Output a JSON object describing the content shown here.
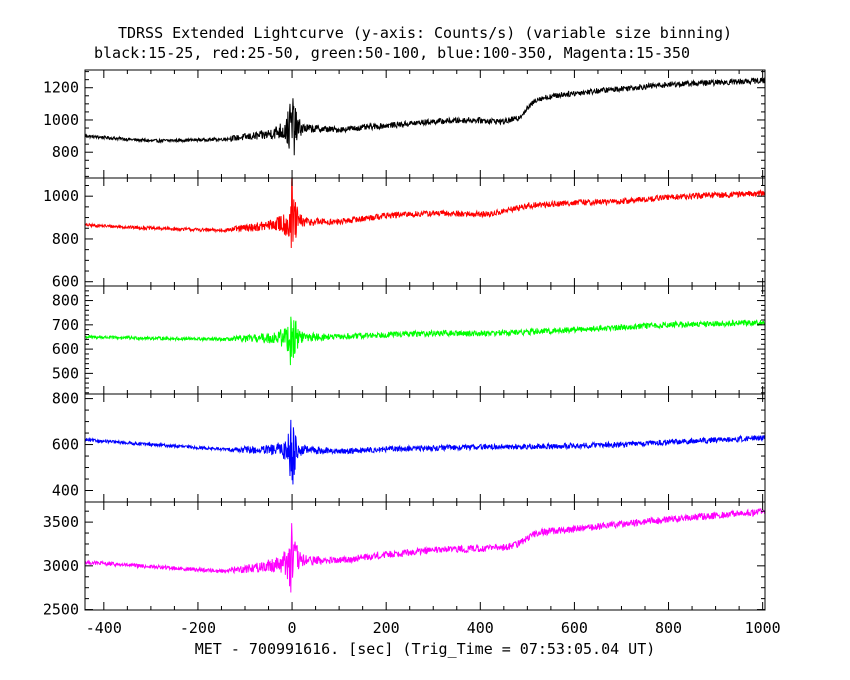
{
  "title": "TDRSS Extended Lightcurve (y-axis: Counts/s) (variable size binning)",
  "subtitle": "black:15-25, red:25-50, green:50-100, blue:100-350, Magenta:15-350",
  "chart_data": {
    "type": "line",
    "title": "TDRSS Extended Lightcurve (y-axis: Counts/s) (variable size binning)",
    "subtitle": "black:15-25, red:25-50, green:50-100, blue:100-350, Magenta:15-350",
    "xlabel": "MET - 700991616. [sec] (Trig_Time = 07:53:05.04 UT)",
    "ylabel": "",
    "xlim": [
      -440,
      1005
    ],
    "xticks": [
      -400,
      -200,
      0,
      200,
      400,
      600,
      800,
      1000
    ],
    "xtick_labels": [
      "-400",
      "-200",
      "0",
      "200",
      "400",
      "600",
      "800",
      "1000"
    ],
    "grid": false,
    "panels": [
      {
        "band": "black",
        "color": "#000000",
        "ylim": [
          640,
          1310
        ],
        "yticks": [
          800,
          1000,
          1200
        ],
        "ytick_labels": [
          "800",
          "1000",
          "1200"
        ],
        "trend": [
          [
            -440,
            900
          ],
          [
            -300,
            870
          ],
          [
            -150,
            880
          ],
          [
            -60,
            905
          ],
          [
            0,
            950
          ],
          [
            100,
            940
          ],
          [
            200,
            965
          ],
          [
            300,
            990
          ],
          [
            380,
            1000
          ],
          [
            450,
            990
          ],
          [
            480,
            1010
          ],
          [
            520,
            1130
          ],
          [
            580,
            1160
          ],
          [
            700,
            1195
          ],
          [
            800,
            1220
          ],
          [
            1005,
            1245
          ]
        ],
        "spike_amp": 260,
        "noise": 18
      },
      {
        "band": "red",
        "color": "#ff0000",
        "ylim": [
          580,
          1085
        ],
        "yticks": [
          600,
          800,
          1000
        ],
        "ytick_labels": [
          "600",
          "800",
          "1000"
        ],
        "trend": [
          [
            -440,
            865
          ],
          [
            -300,
            850
          ],
          [
            -150,
            840
          ],
          [
            -60,
            860
          ],
          [
            0,
            880
          ],
          [
            100,
            880
          ],
          [
            200,
            910
          ],
          [
            300,
            920
          ],
          [
            420,
            915
          ],
          [
            500,
            955
          ],
          [
            600,
            970
          ],
          [
            700,
            975
          ],
          [
            800,
            995
          ],
          [
            1005,
            1015
          ]
        ],
        "spike_amp": 220,
        "noise": 14
      },
      {
        "band": "green",
        "color": "#00ff00",
        "ylim": [
          415,
          860
        ],
        "yticks": [
          500,
          600,
          700,
          800
        ],
        "ytick_labels": [
          "500",
          "600",
          "700",
          "800"
        ],
        "trend": [
          [
            -440,
            650
          ],
          [
            -300,
            645
          ],
          [
            -150,
            640
          ],
          [
            -60,
            645
          ],
          [
            0,
            650
          ],
          [
            100,
            650
          ],
          [
            200,
            660
          ],
          [
            300,
            665
          ],
          [
            400,
            665
          ],
          [
            500,
            670
          ],
          [
            600,
            680
          ],
          [
            700,
            690
          ],
          [
            800,
            700
          ],
          [
            1005,
            710
          ]
        ],
        "spike_amp": 150,
        "noise": 12
      },
      {
        "band": "blue",
        "color": "#0000ff",
        "ylim": [
          350,
          820
        ],
        "yticks": [
          400,
          600,
          800
        ],
        "ytick_labels": [
          "400",
          "600",
          "800"
        ],
        "trend": [
          [
            -440,
            620
          ],
          [
            -300,
            600
          ],
          [
            -150,
            580
          ],
          [
            -60,
            575
          ],
          [
            0,
            580
          ],
          [
            100,
            570
          ],
          [
            200,
            580
          ],
          [
            300,
            585
          ],
          [
            400,
            590
          ],
          [
            500,
            590
          ],
          [
            600,
            595
          ],
          [
            700,
            600
          ],
          [
            800,
            610
          ],
          [
            1005,
            630
          ]
        ],
        "spike_amp": 170,
        "noise": 12
      },
      {
        "band": "magenta",
        "color": "#ff00ff",
        "ylim": [
          2495,
          3730
        ],
        "yticks": [
          2500,
          3000,
          3500
        ],
        "ytick_labels": [
          "2500",
          "3000",
          "3500"
        ],
        "trend": [
          [
            -440,
            3040
          ],
          [
            -300,
            2990
          ],
          [
            -150,
            2940
          ],
          [
            -60,
            2990
          ],
          [
            0,
            3060
          ],
          [
            100,
            3060
          ],
          [
            200,
            3130
          ],
          [
            300,
            3180
          ],
          [
            400,
            3200
          ],
          [
            450,
            3210
          ],
          [
            480,
            3250
          ],
          [
            520,
            3380
          ],
          [
            600,
            3420
          ],
          [
            700,
            3480
          ],
          [
            800,
            3530
          ],
          [
            1005,
            3620
          ]
        ],
        "spike_amp": 480,
        "noise": 40
      }
    ]
  }
}
